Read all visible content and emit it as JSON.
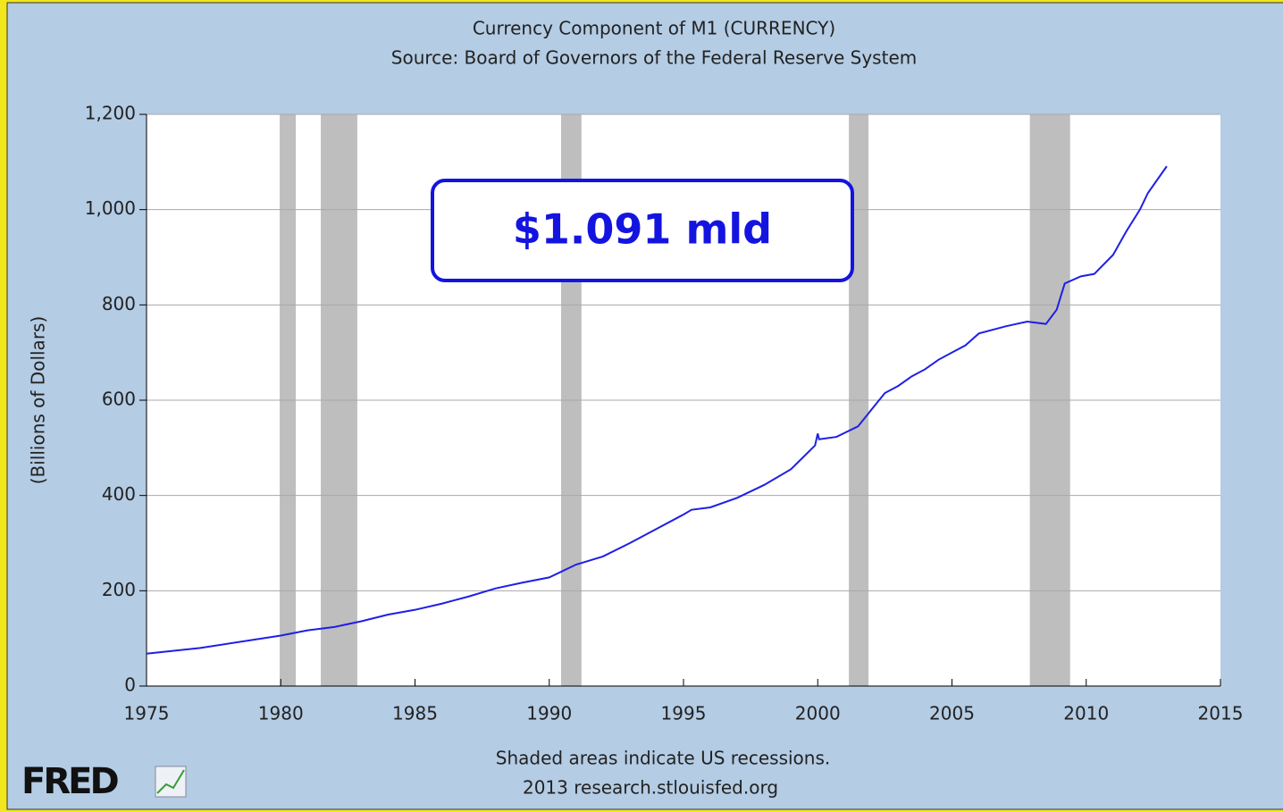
{
  "chart_data": {
    "type": "line",
    "title": "Currency Component of M1 (CURRENCY)",
    "subtitle": "Source: Board of Governors of the Federal Reserve System",
    "y_label": "(Billions of Dollars)",
    "footnote": "Shaded areas indicate US recessions.",
    "credit": "2013 research.stlouisfed.org",
    "logo": "FRED",
    "annotation": "$1.091 mld",
    "x": [
      1975,
      1977,
      1980,
      1981,
      1982,
      1983,
      1984,
      1985,
      1986,
      1987,
      1988,
      1989,
      1990,
      1991,
      1992,
      1993,
      1994,
      1995,
      1995.3,
      1996,
      1997,
      1998,
      1999,
      1999.9,
      2000.0,
      2000.05,
      2000.7,
      2001.5,
      2002,
      2002.5,
      2003,
      2003.5,
      2004,
      2004.5,
      2005,
      2005.5,
      2006,
      2007,
      2007.8,
      2008.5,
      2008.9,
      2009.2,
      2009.8,
      2010.3,
      2011,
      2011.5,
      2012,
      2012.3,
      2013
    ],
    "series": [
      {
        "name": "CURRENCY",
        "color": "#1f1fe6",
        "values": [
          68,
          80,
          106,
          117,
          124,
          136,
          150,
          160,
          173,
          188,
          205,
          217,
          228,
          255,
          272,
          300,
          330,
          360,
          370,
          375,
          395,
          422,
          455,
          505,
          530,
          518,
          523,
          545,
          580,
          615,
          630,
          650,
          665,
          685,
          700,
          715,
          740,
          755,
          765,
          760,
          790,
          845,
          860,
          865,
          905,
          955,
          1000,
          1035,
          1091
        ]
      }
    ],
    "recessions": [
      [
        1979.96,
        1980.56
      ],
      [
        1981.49,
        1982.85
      ],
      [
        1990.44,
        1991.2
      ],
      [
        2001.16,
        2001.89
      ],
      [
        2007.9,
        2009.4
      ]
    ],
    "recession_color": "#bebebe",
    "xlim": [
      1975,
      2015
    ],
    "xticks": [
      1975,
      1980,
      1985,
      1990,
      1995,
      2000,
      2005,
      2010,
      2015
    ],
    "ylim": [
      0,
      1200
    ],
    "yticks": [
      0,
      200,
      400,
      600,
      800,
      {
        "value": 1000,
        "label": "1,000"
      },
      {
        "value": 1200,
        "label": "1,200"
      }
    ],
    "grid": true
  }
}
